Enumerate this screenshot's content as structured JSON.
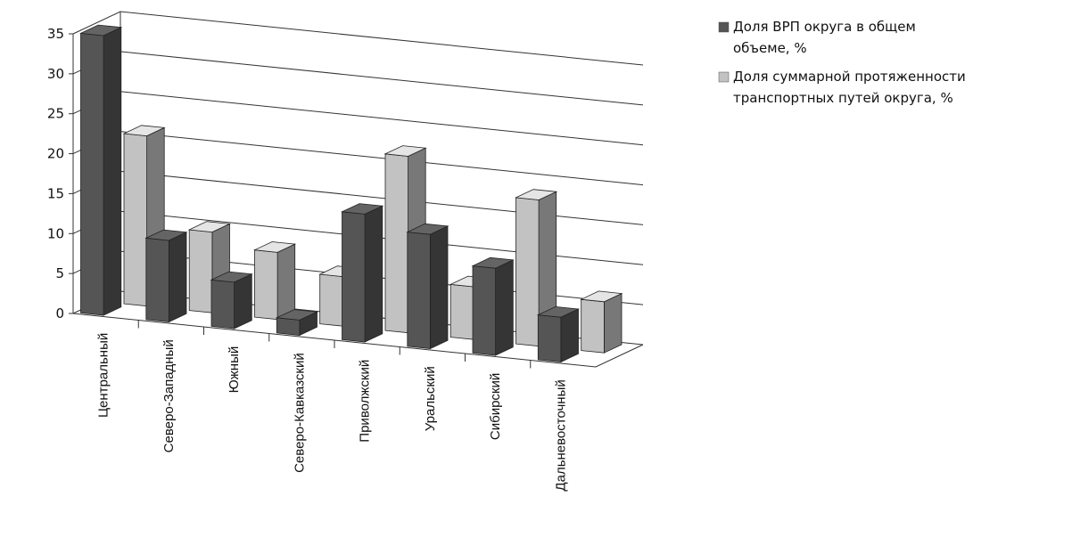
{
  "chart_data": {
    "type": "bar",
    "style": "3d-clustered",
    "categories": [
      "Центральный",
      "Северо-Западный",
      "Южный",
      "Северо-Кавказский",
      "Приволжский",
      "Уральский",
      "Сибирский",
      "Дальневосточный"
    ],
    "series": [
      {
        "name": "Доля ВРП округа в общем объеме, %",
        "name_lines": [
          "Доля ВРП округа в общем",
          "объеме, %"
        ],
        "color": "#555555",
        "values": [
          35,
          10.2,
          5.8,
          1.9,
          16,
          14.3,
          10.9,
          5.6
        ]
      },
      {
        "name": "Доля суммарной протяженности транспортных путей округа, %",
        "name_lines": [
          "Доля суммарной протяженности",
          "транспортных путей округа, %"
        ],
        "color": "#c2c2c2",
        "values": [
          21.3,
          10.1,
          8.4,
          6.2,
          22.1,
          6.6,
          18.3,
          6.4
        ]
      }
    ],
    "y_ticks": [
      "0",
      "5",
      "10",
      "15",
      "20",
      "25",
      "30",
      "35"
    ],
    "ylim": [
      0,
      35
    ],
    "grid": true,
    "legend_position": "top-right"
  }
}
